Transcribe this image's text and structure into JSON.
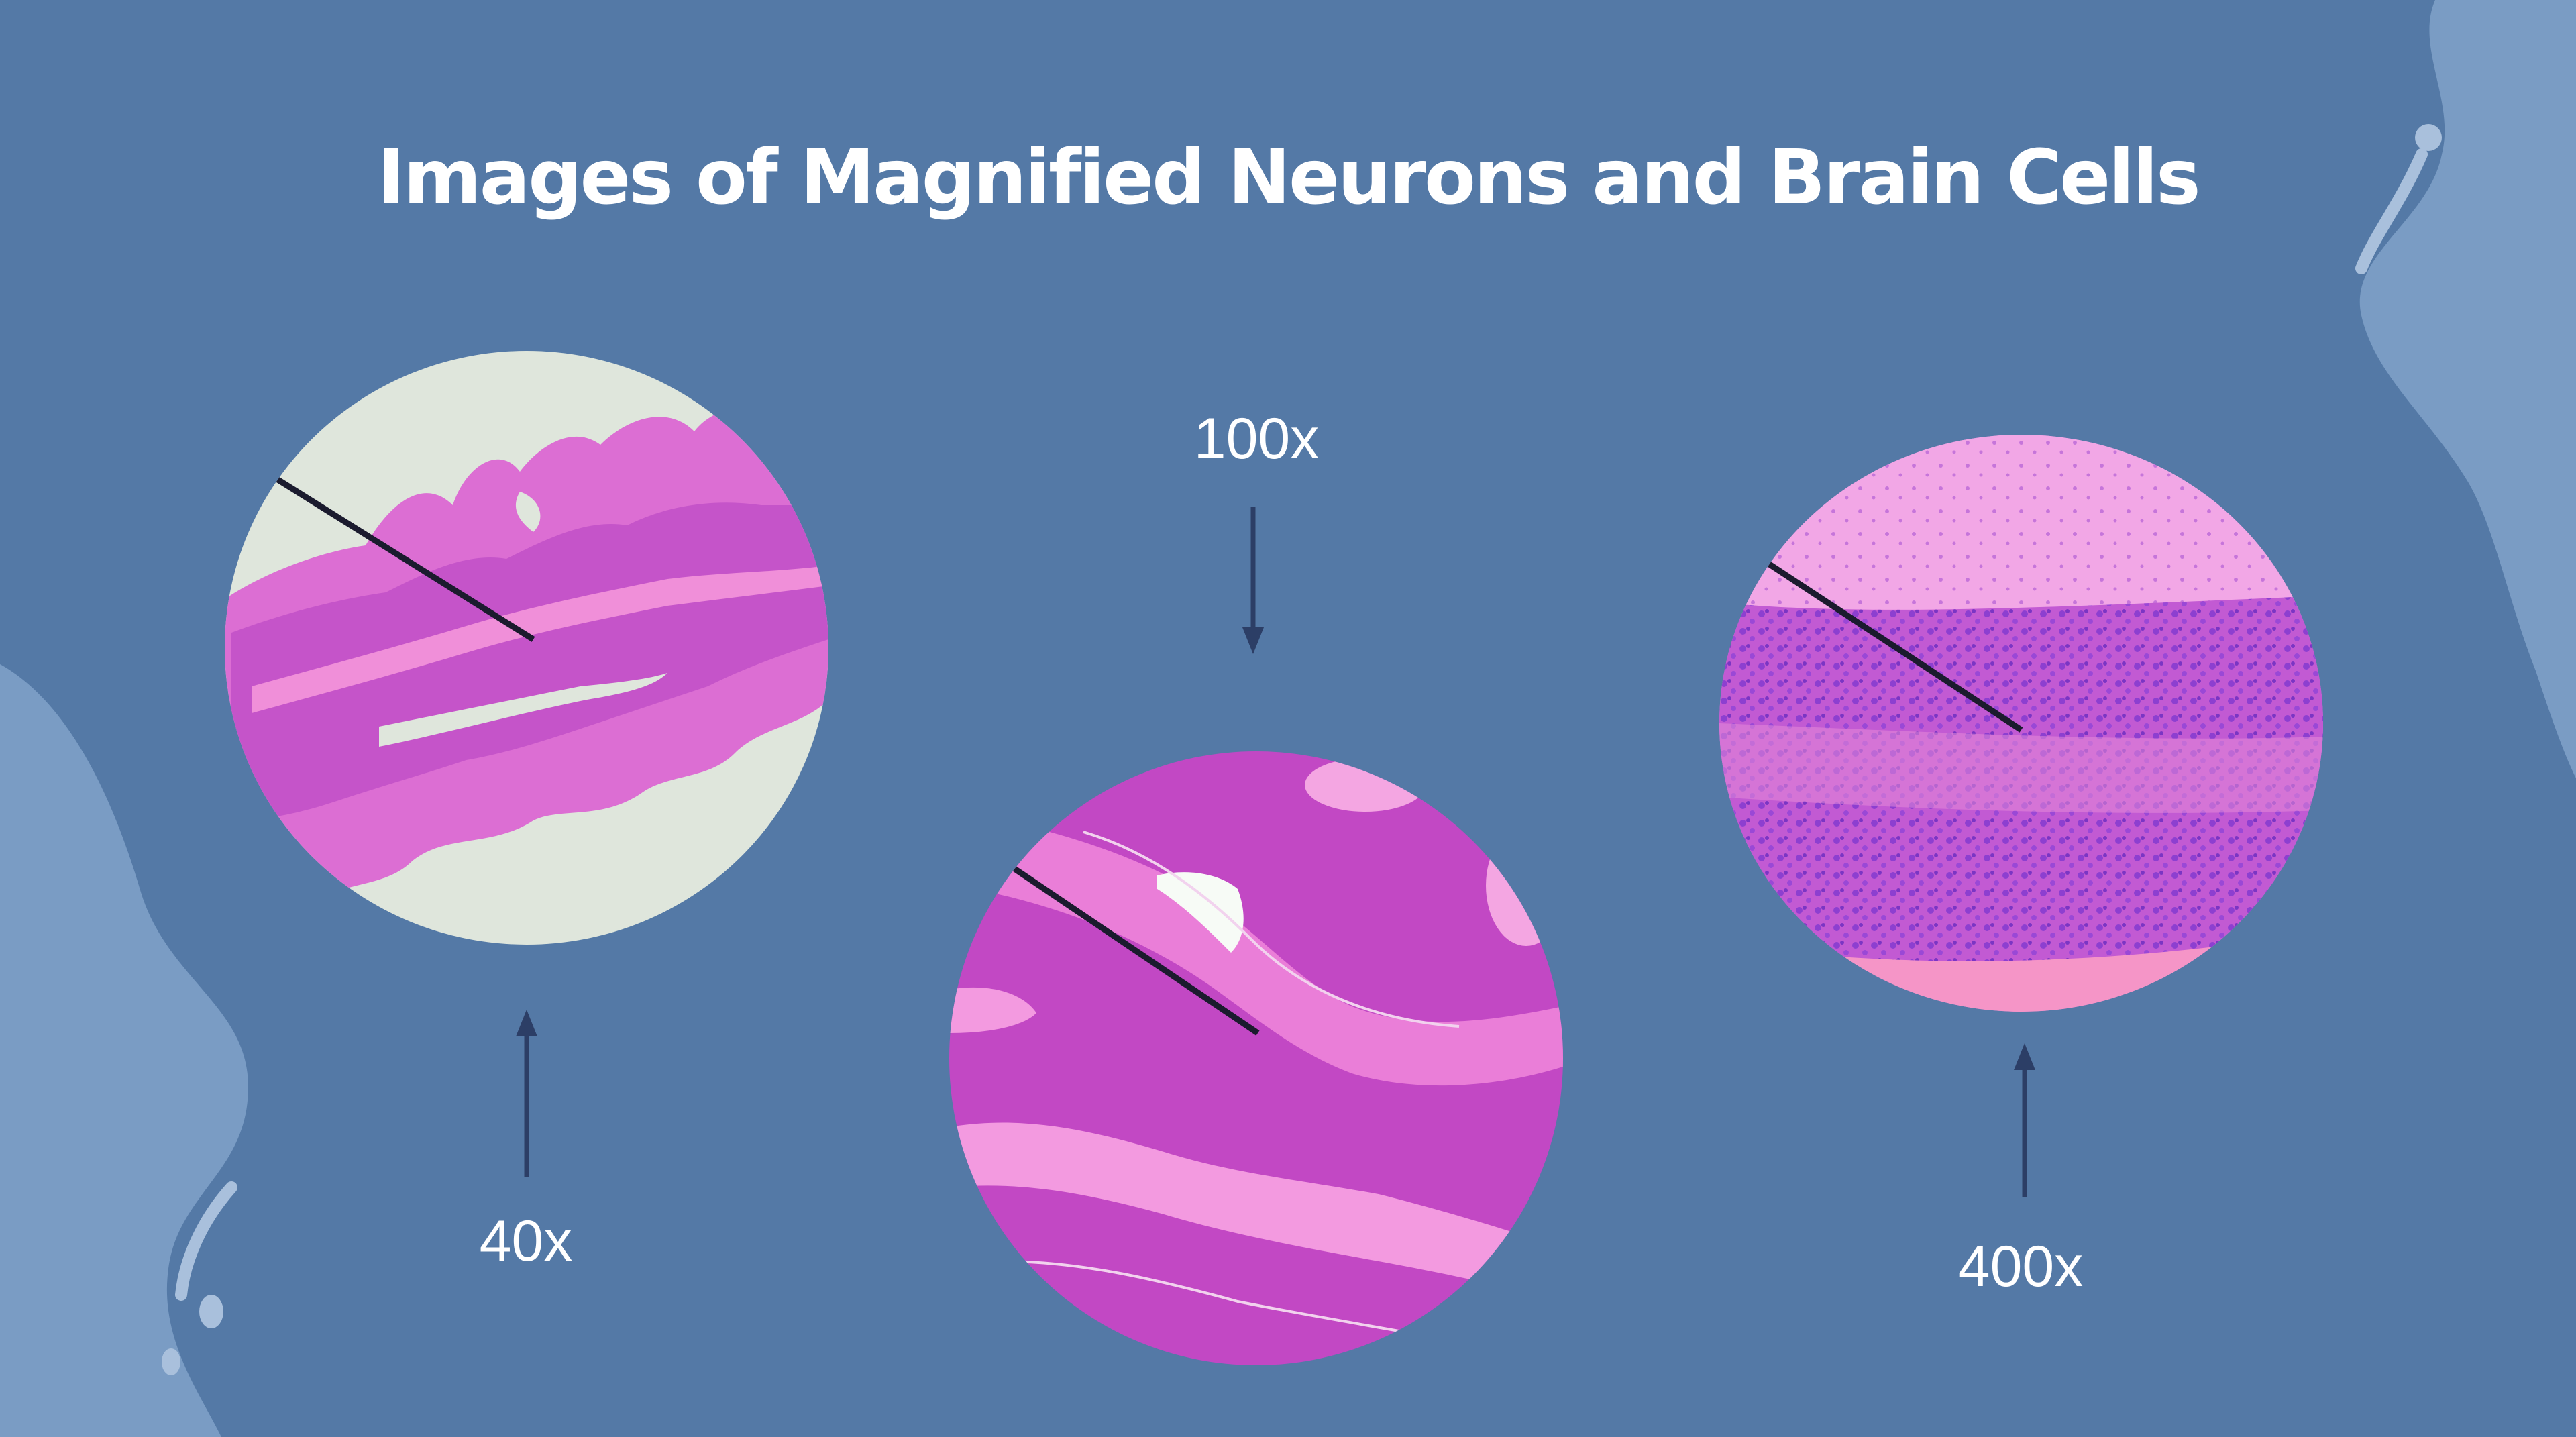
{
  "slide": {
    "title": "Images of Magnified Neurons and Brain Cells"
  },
  "magnifications": [
    {
      "label": "40x",
      "image": "low-magnification-cerebellum-folia",
      "arrow": "up-arrow-icon"
    },
    {
      "label": "100x",
      "image": "medium-magnification-cerebellum-layers",
      "arrow": "down-arrow-icon"
    },
    {
      "label": "400x",
      "image": "high-magnification-granular-cells",
      "arrow": "up-arrow-icon"
    }
  ],
  "colors": {
    "background": "#5479a6",
    "blob": "#7a9cc4",
    "arrow": "#2c3e66",
    "stain_pink": "#e66ad2",
    "stain_purple": "#b23fc0",
    "slide_background": "#dfe6dc"
  }
}
